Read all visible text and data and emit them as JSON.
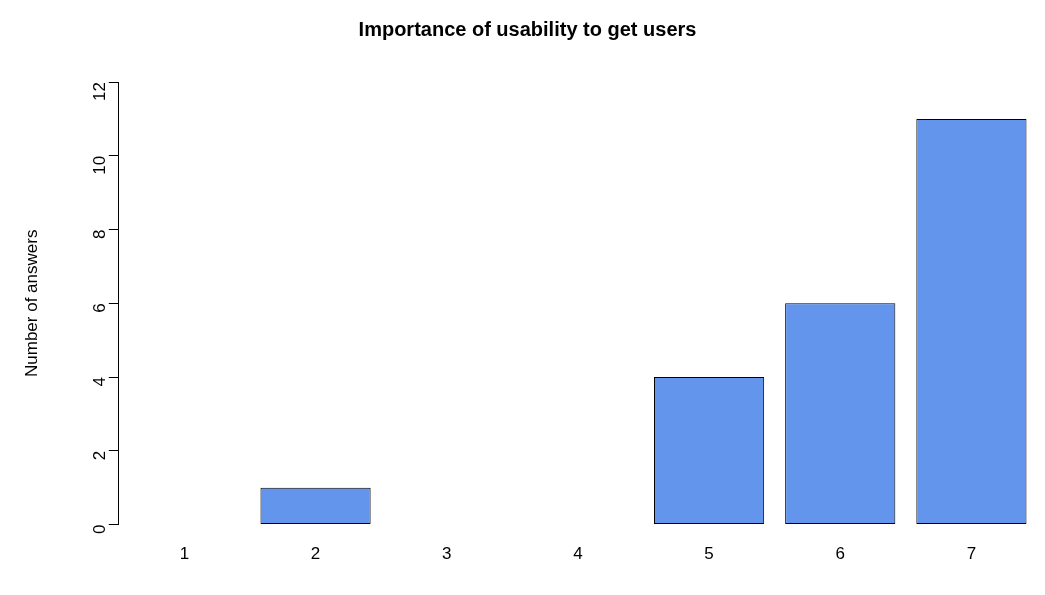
{
  "chart_data": {
    "type": "bar",
    "title": "Importance of usability to get users",
    "ylabel": "Number of answers",
    "categories": [
      "1",
      "2",
      "3",
      "4",
      "5",
      "6",
      "7"
    ],
    "values": [
      0,
      1,
      0,
      0,
      4,
      6,
      11
    ],
    "color": "#6495ed",
    "ylim": [
      0,
      12
    ],
    "yticks": [
      0,
      2,
      4,
      6,
      8,
      10,
      12
    ],
    "grid": false
  }
}
